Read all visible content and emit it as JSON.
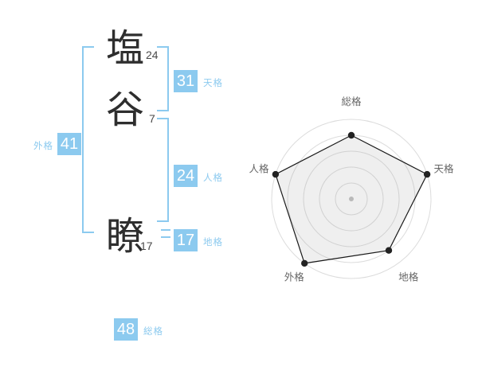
{
  "name_diagram": {
    "characters": [
      {
        "char": "塩",
        "strokes": "24"
      },
      {
        "char": "谷",
        "strokes": "7"
      },
      {
        "char": "瞭",
        "strokes": "17"
      }
    ],
    "fortunes": {
      "tenkaku": {
        "value": "31",
        "label": "天格"
      },
      "jinkaku": {
        "value": "24",
        "label": "人格"
      },
      "chikaku": {
        "value": "17",
        "label": "地格"
      },
      "gaikaku": {
        "value": "41",
        "label": "外格"
      },
      "soukaku": {
        "value": "48",
        "label": "総格"
      }
    },
    "accent_color": "#8ccaef"
  },
  "chart_data": {
    "type": "radar",
    "axes": [
      "総格",
      "天格",
      "地格",
      "外格",
      "人格"
    ],
    "values": [
      4,
      5,
      4,
      5,
      5
    ],
    "max": 5,
    "rings": 5,
    "start_angle_deg": 90,
    "direction": "clockwise",
    "title": "",
    "legend": "none",
    "grid_color": "#dcdcdc",
    "fill_color": "rgba(150,150,150,0.15)",
    "stroke_color": "#1a1a1a",
    "point_color": "#222222",
    "center_dot_color": "#c0c0c0",
    "label_color": "#666666"
  }
}
